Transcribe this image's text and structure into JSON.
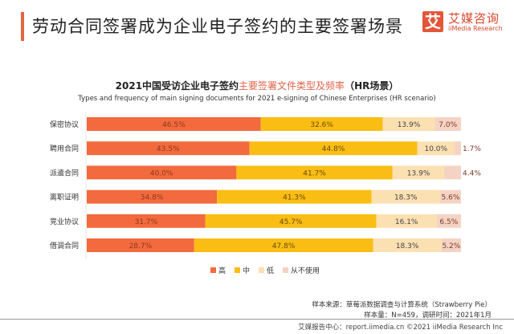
{
  "header": {
    "title": "劳动合同签署成为企业电子签约的主要签署场景",
    "logo_mark": "艾",
    "logo_cn": "艾媒咨询",
    "logo_en": "iiMedia Research"
  },
  "chart_data": {
    "type": "bar",
    "orientation": "horizontal",
    "stacked": true,
    "title_prefix": "2021中国受访企业电子签约",
    "title_highlight": "主要签署文件类型及频率",
    "title_suffix": "（HR场景）",
    "subtitle": "Types and frequency of main signing documents for 2021 e-signing of Chinese Enterprises (HR scenario)",
    "categories": [
      "保密协议",
      "聘用合同",
      "派遣合同",
      "离职证明",
      "竞业协议",
      "借调合同"
    ],
    "series": [
      {
        "name": "高",
        "color": "#f26a3d",
        "values": [
          46.5,
          43.5,
          40.0,
          34.8,
          31.7,
          28.7
        ]
      },
      {
        "name": "中",
        "color": "#f9bd14",
        "values": [
          32.6,
          44.8,
          41.7,
          41.3,
          45.7,
          47.8
        ]
      },
      {
        "name": "低",
        "color": "#fbe0b2",
        "values": [
          13.9,
          10.0,
          13.9,
          18.3,
          16.1,
          18.3
        ]
      },
      {
        "name": "从不使用",
        "color": "#f5d3c4",
        "values": [
          7.0,
          1.7,
          4.4,
          5.6,
          6.5,
          5.2
        ]
      }
    ],
    "unit": "%",
    "xlim": [
      0,
      100
    ],
    "legend": "bottom",
    "grid": false
  },
  "source": {
    "line1": "样本来源：草莓派数据调查与计算系统（Strawberry Pie）",
    "line2": "样本量：N=459，调研时间：2021年1月"
  },
  "footer": {
    "text": "艾媒报告中心：report.iimedia.cn   ©2021  iiMedia Research  Inc"
  }
}
